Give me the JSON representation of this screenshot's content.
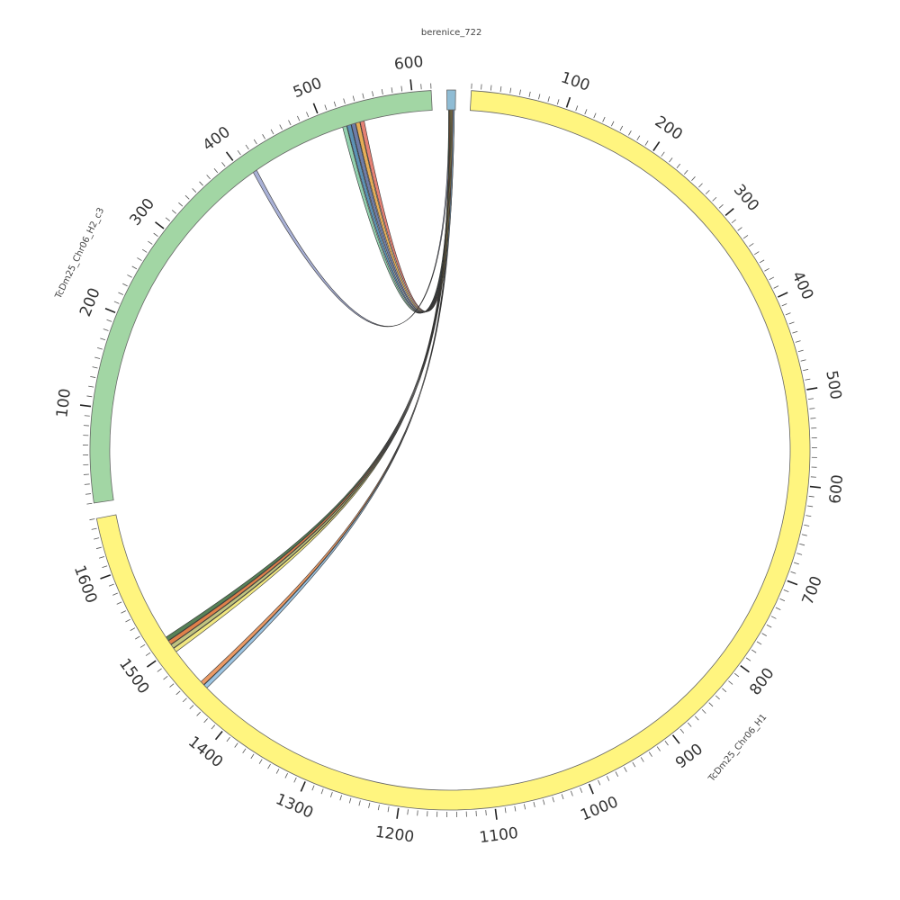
{
  "chart_data": {
    "type": "chord",
    "segments": [
      {
        "name": "berenice_722",
        "length": 5,
        "color": "#8fbcd4",
        "ticks": []
      },
      {
        "name": "TcDm25_Chr06_H1",
        "length": 1660,
        "color": "#fff57f",
        "ticks": [
          "100",
          "200",
          "300",
          "400",
          "500",
          "600",
          "700",
          "800",
          "900",
          "1000",
          "1100",
          "1200",
          "1300",
          "1400",
          "1500",
          "1600"
        ]
      },
      {
        "name": "TcDm25_Chr06_H2_c3",
        "length": 620,
        "color": "#a2d6a4",
        "ticks": [
          "100",
          "200",
          "300",
          "400",
          "500",
          "600"
        ]
      }
    ],
    "links": [
      {
        "from": "berenice_722",
        "to": "TcDm25_Chr06_H2_c3",
        "to_pos": 410,
        "color": "#9aa3cf"
      },
      {
        "from": "berenice_722",
        "to": "TcDm25_Chr06_H2_c3",
        "to_pos": 520,
        "color": "#7fc8a0"
      },
      {
        "from": "berenice_722",
        "to": "TcDm25_Chr06_H2_c3",
        "to_pos": 525,
        "color": "#3f7fa8"
      },
      {
        "from": "berenice_722",
        "to": "TcDm25_Chr06_H2_c3",
        "to_pos": 530,
        "color": "#556699"
      },
      {
        "from": "berenice_722",
        "to": "TcDm25_Chr06_H2_c3",
        "to_pos": 535,
        "color": "#e3a03a"
      },
      {
        "from": "berenice_722",
        "to": "TcDm25_Chr06_H2_c3",
        "to_pos": 540,
        "color": "#e06b5c"
      },
      {
        "from": "berenice_722",
        "to": "TcDm25_Chr06_H1",
        "to_pos": 1510,
        "color": "#3a6b3a"
      },
      {
        "from": "berenice_722",
        "to": "TcDm25_Chr06_H1",
        "to_pos": 1505,
        "color": "#d96a2a"
      },
      {
        "from": "berenice_722",
        "to": "TcDm25_Chr06_H1",
        "to_pos": 1500,
        "color": "#b5b96a"
      },
      {
        "from": "berenice_722",
        "to": "TcDm25_Chr06_H1",
        "to_pos": 1495,
        "color": "#eee36a"
      },
      {
        "from": "berenice_722",
        "to": "TcDm25_Chr06_H1",
        "to_pos": 1448,
        "color": "#e8884a"
      },
      {
        "from": "berenice_722",
        "to": "TcDm25_Chr06_H1",
        "to_pos": 1443,
        "color": "#8ab8dc"
      }
    ]
  }
}
